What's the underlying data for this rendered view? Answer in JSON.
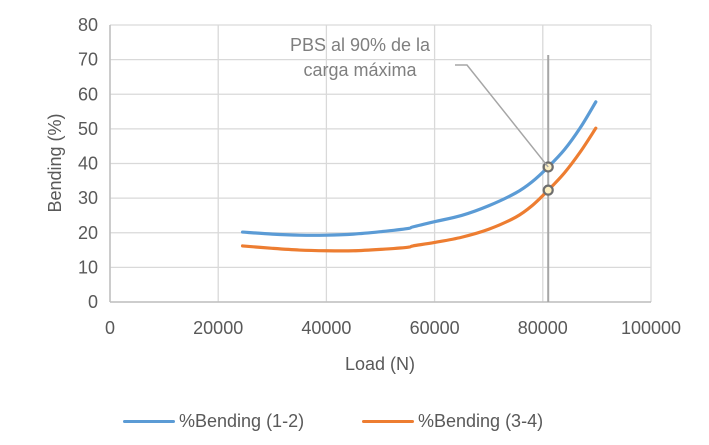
{
  "chart_data": {
    "type": "line",
    "title": "",
    "xlabel": "Load (N)",
    "ylabel": "Bending (%)",
    "xlim": [
      0,
      100000
    ],
    "ylim": [
      0,
      80
    ],
    "x_ticks": [
      "0",
      "20000",
      "40000",
      "60000",
      "80000",
      "100000"
    ],
    "y_ticks": [
      "0",
      "10",
      "20",
      "30",
      "40",
      "50",
      "60",
      "70",
      "80"
    ],
    "grid": true,
    "legend_position": "bottom",
    "x": [
      24500,
      30000,
      35000,
      40000,
      45000,
      50000,
      55000,
      56000,
      60000,
      65000,
      70000,
      75000,
      78000,
      81000,
      84000,
      87000,
      89800
    ],
    "series": [
      {
        "name": "%Bending (1-2)",
        "color": "#5b9bd5",
        "values": [
          20.2,
          19.6,
          19.3,
          19.3,
          19.6,
          20.3,
          21.2,
          21.7,
          23.2,
          25.0,
          27.8,
          31.5,
          34.7,
          39.0,
          44.0,
          50.5,
          57.8
        ]
      },
      {
        "name": "%Bending (3-4)",
        "color": "#ed7d31",
        "values": [
          16.2,
          15.5,
          15.0,
          14.8,
          14.8,
          15.2,
          15.8,
          16.2,
          17.2,
          18.7,
          21.0,
          24.5,
          27.8,
          32.3,
          37.3,
          43.5,
          50.2
        ]
      }
    ],
    "annotations": [
      {
        "text_lines": [
          "PBS al 90% de la",
          "carga máxima"
        ],
        "vertical_line_x": 81000,
        "markers": [
          {
            "x": 81000,
            "y": 39.0,
            "series": "%Bending (1-2)"
          },
          {
            "x": 81000,
            "y": 32.3,
            "series": "%Bending (3-4)"
          }
        ]
      }
    ]
  },
  "labels": {
    "annotation_line1": "PBS al 90% de la",
    "annotation_line2": "carga máxima",
    "legend_1": "%Bending (1-2)",
    "legend_2": "%Bending (3-4)"
  }
}
